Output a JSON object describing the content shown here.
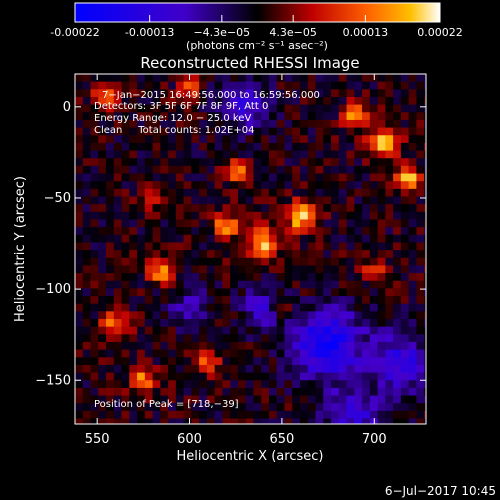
{
  "chart_data": {
    "type": "heatmap",
    "title": "Reconstructed RHESSI Image",
    "xlabel": "Heliocentric X (arcsec)",
    "ylabel": "Heliocentric Y (arcsec)",
    "xlim": [
      538,
      728
    ],
    "ylim": [
      -174,
      18
    ],
    "x_ticks": [
      550,
      600,
      650,
      700
    ],
    "x_tick_labels": [
      "550",
      "600",
      "650",
      "700"
    ],
    "y_ticks": [
      0,
      -50,
      -100,
      -150
    ],
    "y_tick_labels": [
      "0",
      "−50",
      "−100",
      "−150"
    ],
    "colorbar": {
      "min": -0.00022,
      "max": 0.00022,
      "ticks": [
        -0.00022,
        -0.00013,
        -4.3e-05,
        4.3e-05,
        0.00013,
        0.00022
      ],
      "tick_labels": [
        "-0.00022",
        "-0.00013",
        "−4.3e−05",
        "4.3e−05",
        "0.00013",
        "0.00022"
      ],
      "unit_label": "(photons cm⁻² s⁻¹ asec⁻²)",
      "colormap": [
        "#0000ff",
        "#4400cc",
        "#000000",
        "#c00000",
        "#ff6000",
        "#ffc000",
        "#ffffff"
      ]
    },
    "annotations": {
      "time_range": "7−Jan−2015 16:49:56.000 to 16:59:56.000",
      "detectors": "Detectors: 3F 5F 6F 7F 8F 9F, Att 0",
      "energy_range": "Energy Range: 12.0 − 25.0 keV",
      "method_counts": "Clean     Total counts: 1.02E+04",
      "peak_position": "Position of Peak = [718,−39]"
    },
    "peak": {
      "x": 718,
      "y": -39,
      "value": 0.00022
    },
    "grid": "off",
    "legend": "none"
  },
  "footer": {
    "date": "6−Jul−2017 10:45"
  }
}
